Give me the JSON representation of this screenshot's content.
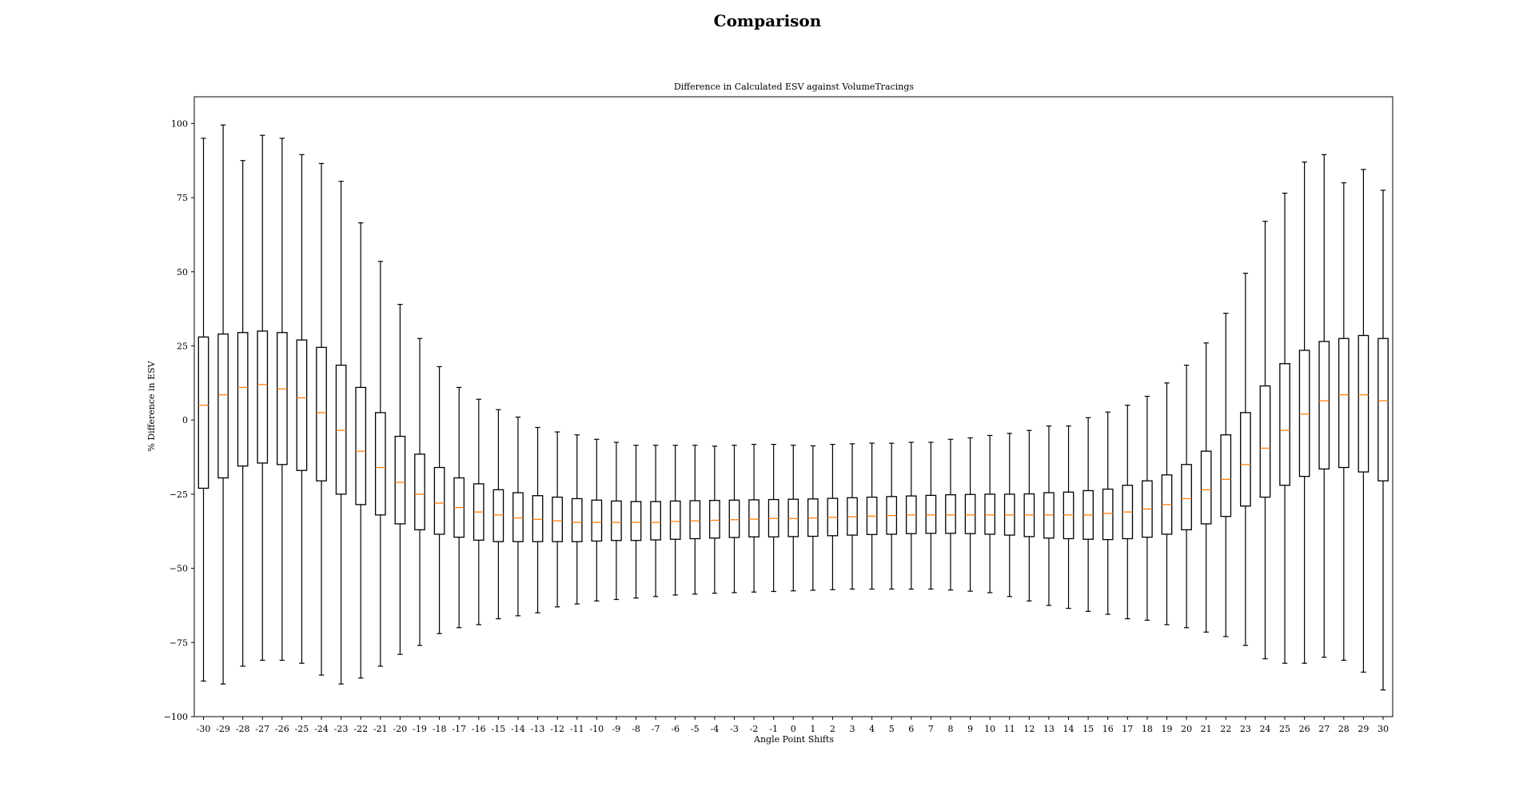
{
  "figure_title": "Comparison",
  "chart_data": {
    "type": "box",
    "title": "Difference in Calculated ESV against VolumeTracings",
    "xlabel": "Angle Point Shifts",
    "ylabel": "% Difference in ESV",
    "ylim": [
      -100,
      109
    ],
    "yticks": [
      -100,
      -75,
      -50,
      -25,
      0,
      25,
      50,
      75,
      100
    ],
    "grid": false,
    "median_color": "#ff7f0e",
    "box_color": "#000000",
    "categories": [
      "-30",
      "-29",
      "-28",
      "-27",
      "-26",
      "-25",
      "-24",
      "-23",
      "-22",
      "-21",
      "-20",
      "-19",
      "-18",
      "-17",
      "-16",
      "-15",
      "-14",
      "-13",
      "-12",
      "-11",
      "-10",
      "-9",
      "-8",
      "-7",
      "-6",
      "-5",
      "-4",
      "-3",
      "-2",
      "-1",
      "0",
      "1",
      "2",
      "3",
      "4",
      "5",
      "6",
      "7",
      "8",
      "9",
      "10",
      "11",
      "12",
      "13",
      "14",
      "15",
      "16",
      "17",
      "18",
      "19",
      "20",
      "21",
      "22",
      "23",
      "24",
      "25",
      "26",
      "27",
      "28",
      "29",
      "30"
    ],
    "whisker_low": [
      -88,
      -89,
      -83,
      -81,
      -81,
      -82,
      -86,
      -89,
      -87,
      -83,
      -79,
      -76,
      -72,
      -70,
      -69,
      -67,
      -66,
      -65,
      -63,
      -62,
      -61,
      -60.5,
      -60,
      -59.5,
      -59,
      -58.7,
      -58.4,
      -58.2,
      -58,
      -57.8,
      -57.6,
      -57.4,
      -57.2,
      -57,
      -57,
      -57,
      -57,
      -57,
      -57.3,
      -57.7,
      -58.2,
      -59.5,
      -61,
      -62.5,
      -63.5,
      -64.5,
      -65.5,
      -67,
      -67.5,
      -69,
      -70,
      -71.5,
      -73,
      -76,
      -80.5,
      -82,
      -82,
      -80,
      -81,
      -85,
      -91
    ],
    "q1": [
      -23,
      -19.5,
      -15.5,
      -14.5,
      -15,
      -17,
      -20.5,
      -25,
      -28.5,
      -32,
      -35,
      -37,
      -38.5,
      -39.5,
      -40.5,
      -41,
      -41,
      -41,
      -41,
      -41,
      -40.8,
      -40.6,
      -40.6,
      -40.4,
      -40.2,
      -40,
      -39.8,
      -39.6,
      -39.4,
      -39.4,
      -39.3,
      -39.2,
      -39,
      -38.8,
      -38.6,
      -38.5,
      -38.3,
      -38.2,
      -38.2,
      -38.3,
      -38.5,
      -38.8,
      -39.3,
      -39.8,
      -40,
      -40.2,
      -40.3,
      -40,
      -39.5,
      -38.5,
      -37,
      -35,
      -32.5,
      -29,
      -26,
      -22,
      -19,
      -16.5,
      -16,
      -17.5,
      -20.5
    ],
    "median": [
      5,
      8.5,
      11,
      12,
      10.5,
      7.5,
      2.5,
      -3.5,
      -10.5,
      -16,
      -21,
      -25,
      -28,
      -29.5,
      -31,
      -32,
      -33,
      -33.5,
      -34,
      -34.5,
      -34.5,
      -34.5,
      -34.5,
      -34.5,
      -34.2,
      -34,
      -33.8,
      -33.6,
      -33.4,
      -33.2,
      -33.2,
      -33,
      -32.8,
      -32.6,
      -32.4,
      -32.2,
      -32,
      -32,
      -32,
      -32,
      -32,
      -32,
      -32,
      -32,
      -32,
      -32,
      -31.5,
      -31,
      -30,
      -28.5,
      -26.5,
      -23.5,
      -20,
      -15,
      -9.5,
      -3.5,
      2,
      6.5,
      8.5,
      8.5,
      6.5
    ],
    "q3": [
      28,
      29,
      29.5,
      30,
      29.5,
      27,
      24.5,
      18.5,
      11,
      2.5,
      -5.5,
      -11.5,
      -16,
      -19.5,
      -21.5,
      -23.5,
      -24.5,
      -25.5,
      -26,
      -26.5,
      -27,
      -27.3,
      -27.5,
      -27.5,
      -27.3,
      -27.2,
      -27.1,
      -27,
      -26.9,
      -26.8,
      -26.7,
      -26.6,
      -26.4,
      -26.2,
      -26,
      -25.8,
      -25.6,
      -25.4,
      -25.2,
      -25.1,
      -25,
      -25,
      -24.9,
      -24.5,
      -24.3,
      -23.8,
      -23.3,
      -22,
      -20.5,
      -18.5,
      -15,
      -10.5,
      -5,
      2.5,
      11.5,
      19,
      23.5,
      26.5,
      27.5,
      28.5,
      27.5
    ],
    "whisker_high": [
      95,
      99.5,
      87.5,
      96,
      95,
      89.5,
      86.5,
      80.5,
      66.5,
      53.5,
      39,
      27.5,
      18,
      11,
      7,
      3.5,
      1,
      -2.5,
      -4,
      -5,
      -6.5,
      -7.5,
      -8.5,
      -8.5,
      -8.5,
      -8.5,
      -8.8,
      -8.5,
      -8.2,
      -8.2,
      -8.5,
      -8.7,
      -8.2,
      -8,
      -7.8,
      -7.8,
      -7.5,
      -7.5,
      -6.5,
      -6,
      -5.2,
      -4.5,
      -3.5,
      -2,
      -2,
      0.8,
      2.7,
      5,
      8,
      12.5,
      18.5,
      26,
      36,
      49.5,
      67,
      76.5,
      87,
      89.5,
      80,
      84.5,
      77.5
    ]
  }
}
